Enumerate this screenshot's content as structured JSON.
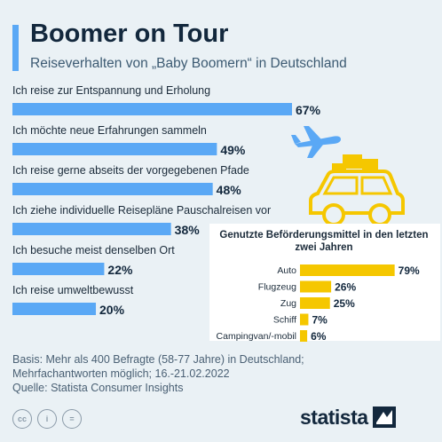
{
  "header": {
    "title": "Boomer on Tour",
    "subtitle": "Reiseverhalten von „Baby Boomern“ in Deutschland"
  },
  "colors": {
    "main_bar": "#5aa8f5",
    "inset_bar": "#f5c700",
    "background": "#eaf1f5"
  },
  "chart_data": [
    {
      "type": "bar",
      "orientation": "horizontal",
      "categories": [
        "Ich reise zur Entspannung und Erholung",
        "Ich möchte neue Erfahrungen sammeln",
        "Ich reise gerne abseits der vorgegebenen Pfade",
        "Ich ziehe individuelle Reisepläne Pauschalreisen vor",
        "Ich besuche meist denselben Ort",
        "Ich reise umweltbewusst"
      ],
      "values": [
        67,
        49,
        48,
        38,
        22,
        20
      ],
      "value_labels": [
        "67%",
        "49%",
        "48%",
        "38%",
        "22%",
        "20%"
      ],
      "unit": "%",
      "xlim": [
        0,
        100
      ],
      "grid": false
    },
    {
      "type": "bar",
      "orientation": "horizontal",
      "title": "Genutzte Beförderungsmittel in den letzten zwei Jahren",
      "categories": [
        "Auto",
        "Flugzeug",
        "Zug",
        "Schiff",
        "Campingvan/-mobil"
      ],
      "values": [
        79,
        26,
        25,
        7,
        6
      ],
      "value_labels": [
        "79%",
        "26%",
        "25%",
        "7%",
        "6%"
      ],
      "unit": "%",
      "xlim": [
        0,
        100
      ],
      "grid": false
    }
  ],
  "footer": {
    "note_line1": "Basis: Mehr als 400 Befragte (58-77 Jahre) in Deutschland;",
    "note_line2": "Mehrfachantworten möglich; 16.-21.02.2022",
    "source": "Quelle: Statista Consumer Insights",
    "license_icons": [
      "cc-icon",
      "attribution-icon",
      "no-derivatives-icon"
    ],
    "license_labels": [
      "cc",
      "i",
      "="
    ],
    "brand": "statista"
  }
}
